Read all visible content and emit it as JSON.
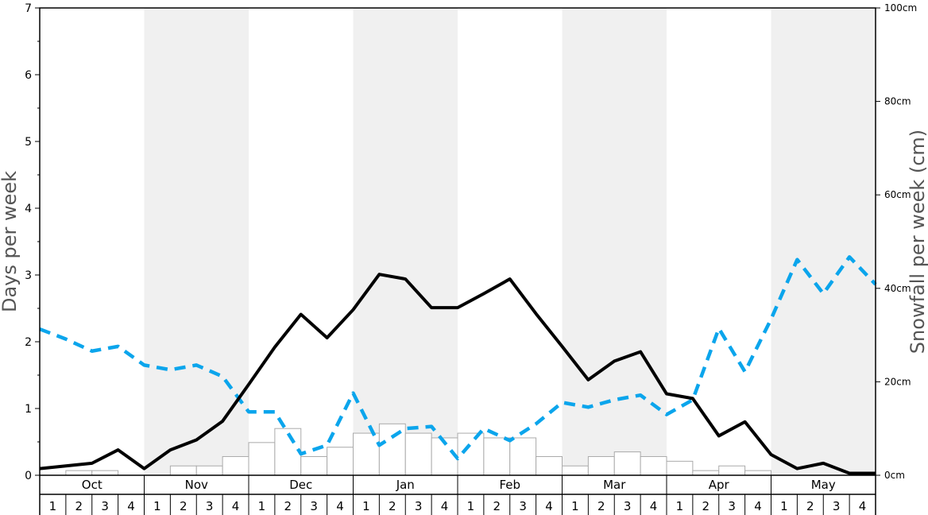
{
  "chart_data": {
    "type": "bar+line",
    "ylabel": "Days per week",
    "ylabel_right": "Snowfall per week (cm)",
    "ylim": [
      0,
      7
    ],
    "ylim_right": [
      0,
      100
    ],
    "yticks": [
      "0",
      "1",
      "2",
      "3",
      "4",
      "5",
      "6",
      "7"
    ],
    "yticks_right": [
      "0cm",
      "20cm",
      "40cm",
      "60cm",
      "80cm",
      "100cm"
    ],
    "months": [
      "Oct",
      "Nov",
      "Dec",
      "Jan",
      "Feb",
      "Mar",
      "Apr",
      "May"
    ],
    "weeks": [
      "1",
      "2",
      "3",
      "4"
    ],
    "shaded_months": [
      "Nov",
      "Jan",
      "Mar",
      "May"
    ],
    "snowfall_cm": [
      0,
      1,
      1,
      0,
      0,
      2,
      2,
      4,
      7,
      10,
      4,
      6,
      9,
      11,
      9,
      8,
      9,
      8,
      8,
      4,
      2,
      4,
      5,
      4,
      3,
      1,
      2,
      1,
      0,
      0,
      0,
      0
    ],
    "series": [
      {
        "style": "solid-black",
        "values": [
          0.1,
          0.14,
          0.18,
          0.38,
          0.1,
          0.38,
          0.53,
          0.81,
          1.36,
          1.92,
          2.41,
          2.06,
          2.48,
          3.01,
          2.94,
          2.51,
          2.51,
          2.72,
          2.94,
          2.42,
          1.93,
          1.43,
          1.71,
          1.85,
          1.22,
          1.15,
          0.59,
          0.8,
          0.31,
          0.1,
          0.18,
          0.03,
          0.03
        ]
      },
      {
        "style": "dashed-blue",
        "values": [
          2.19,
          2.04,
          1.86,
          1.93,
          1.65,
          1.58,
          1.65,
          1.48,
          0.95,
          0.95,
          0.32,
          0.45,
          1.23,
          0.45,
          0.7,
          0.73,
          0.25,
          0.7,
          0.52,
          0.77,
          1.09,
          1.02,
          1.13,
          1.2,
          0.91,
          1.13,
          2.2,
          1.55,
          2.34,
          3.23,
          2.72,
          3.27,
          2.86
        ]
      }
    ],
    "line_colors": {
      "solid": "#000000",
      "dashed": "#0ba5ec"
    },
    "bar_fill": "#ffffff",
    "bar_stroke": "#aaaaaa",
    "shade_color": "#f0f0f0"
  }
}
